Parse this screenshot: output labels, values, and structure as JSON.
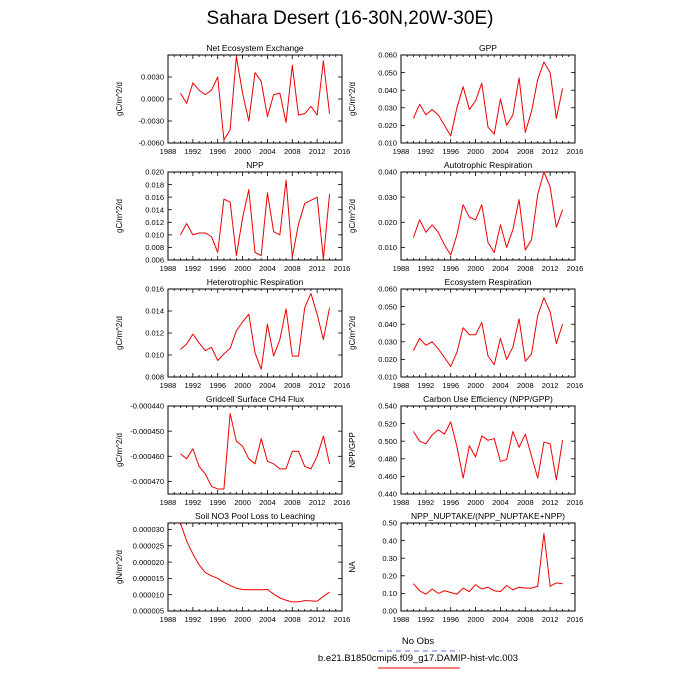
{
  "page": {
    "title": "Sahara Desert (16-30N,20W-30E)"
  },
  "colors": {
    "series": "#ee0000",
    "obs": "#5a6fd9",
    "axis": "#000000"
  },
  "legend": [
    {
      "label": "No Obs",
      "color": "#5a6fd9",
      "dash": true
    },
    {
      "label": "b.e21.B1850cmip6.f09_g17.DAMIP-hist-vlc.003",
      "color": "#ee0000",
      "dash": false
    }
  ],
  "chart_data": [
    {
      "type": "line",
      "title": "Net Ecosystem Exchange",
      "ylabel": "gC/m^2/d",
      "xlim": [
        1988,
        2016
      ],
      "xticks": [
        "1988",
        "1992",
        "1996",
        "2000",
        "2004",
        "2008",
        "2012",
        "2016"
      ],
      "ylim": [
        -0.006,
        0.006
      ],
      "yticks": [
        "-0.0060",
        "-0.0030",
        "0.0000",
        "0.0030"
      ],
      "ytick_values": [
        -0.006,
        -0.003,
        0.0,
        0.003
      ],
      "x": [
        1990,
        1991,
        1992,
        1993,
        1994,
        1995,
        1996,
        1997,
        1998,
        1999,
        2000,
        2001,
        2002,
        2003,
        2004,
        2005,
        2006,
        2007,
        2008,
        2009,
        2010,
        2011,
        2012,
        2013,
        2014
      ],
      "series": [
        {
          "values": [
            0.0008,
            -0.0006,
            0.0022,
            0.0012,
            0.0006,
            0.0012,
            0.003,
            -0.0056,
            -0.0042,
            0.0058,
            0.0008,
            -0.003,
            0.0036,
            0.0024,
            -0.0024,
            0.0006,
            0.0008,
            -0.0032,
            0.0046,
            -0.0022,
            -0.002,
            -0.001,
            -0.0022,
            0.0052,
            -0.002
          ]
        }
      ]
    },
    {
      "type": "line",
      "title": "GPP",
      "ylabel": "gC/m^2/d",
      "xlim": [
        1988,
        2016
      ],
      "xticks": [
        "1988",
        "1992",
        "1996",
        "2000",
        "2004",
        "2008",
        "2012",
        "2016"
      ],
      "ylim": [
        0.01,
        0.06
      ],
      "yticks": [
        "0.010",
        "0.020",
        "0.030",
        "0.040",
        "0.050",
        "0.060"
      ],
      "ytick_values": [
        0.01,
        0.02,
        0.03,
        0.04,
        0.05,
        0.06
      ],
      "x": [
        1990,
        1991,
        1992,
        1993,
        1994,
        1995,
        1996,
        1997,
        1998,
        1999,
        2000,
        2001,
        2002,
        2003,
        2004,
        2005,
        2006,
        2007,
        2008,
        2009,
        2010,
        2011,
        2012,
        2013,
        2014
      ],
      "series": [
        {
          "values": [
            0.024,
            0.032,
            0.026,
            0.029,
            0.026,
            0.02,
            0.014,
            0.03,
            0.042,
            0.029,
            0.034,
            0.044,
            0.019,
            0.015,
            0.035,
            0.02,
            0.026,
            0.047,
            0.016,
            0.028,
            0.046,
            0.056,
            0.05,
            0.024,
            0.041
          ]
        }
      ]
    },
    {
      "type": "line",
      "title": "NPP",
      "ylabel": "gC/m^2/d",
      "xlim": [
        1988,
        2016
      ],
      "xticks": [
        "1988",
        "1992",
        "1996",
        "2000",
        "2004",
        "2008",
        "2012",
        "2016"
      ],
      "ylim": [
        0.006,
        0.02
      ],
      "yticks": [
        "0.006",
        "0.008",
        "0.010",
        "0.012",
        "0.014",
        "0.016",
        "0.018",
        "0.020"
      ],
      "ytick_values": [
        0.006,
        0.008,
        0.01,
        0.012,
        0.014,
        0.016,
        0.018,
        0.02
      ],
      "x": [
        1990,
        1991,
        1992,
        1993,
        1994,
        1995,
        1996,
        1997,
        1998,
        1999,
        2000,
        2001,
        2002,
        2003,
        2004,
        2005,
        2006,
        2007,
        2008,
        2009,
        2010,
        2011,
        2012,
        2013,
        2014
      ],
      "series": [
        {
          "values": [
            0.01,
            0.0118,
            0.01,
            0.0103,
            0.0103,
            0.0097,
            0.0072,
            0.0157,
            0.0152,
            0.0067,
            0.0127,
            0.0172,
            0.0072,
            0.0067,
            0.0167,
            0.0105,
            0.01,
            0.0187,
            0.0065,
            0.0117,
            0.015,
            0.0155,
            0.016,
            0.0062,
            0.0165
          ]
        }
      ]
    },
    {
      "type": "line",
      "title": "Autotrophic Respiration",
      "ylabel": "gC/m^2/d",
      "xlim": [
        1988,
        2016
      ],
      "xticks": [
        "1988",
        "1992",
        "1996",
        "2000",
        "2004",
        "2008",
        "2012",
        "2016"
      ],
      "ylim": [
        0.005,
        0.04
      ],
      "yticks": [
        "0.010",
        "0.020",
        "0.030",
        "0.040"
      ],
      "ytick_values": [
        0.01,
        0.02,
        0.03,
        0.04
      ],
      "x": [
        1990,
        1991,
        1992,
        1993,
        1994,
        1995,
        1996,
        1997,
        1998,
        1999,
        2000,
        2001,
        2002,
        2003,
        2004,
        2005,
        2006,
        2007,
        2008,
        2009,
        2010,
        2011,
        2012,
        2013,
        2014
      ],
      "series": [
        {
          "values": [
            0.014,
            0.021,
            0.016,
            0.019,
            0.016,
            0.011,
            0.007,
            0.015,
            0.027,
            0.022,
            0.021,
            0.027,
            0.012,
            0.008,
            0.019,
            0.01,
            0.017,
            0.029,
            0.009,
            0.013,
            0.031,
            0.04,
            0.034,
            0.018,
            0.025
          ]
        }
      ]
    },
    {
      "type": "line",
      "title": "Heterotrophic Respiration",
      "ylabel": "gC/m^2/d",
      "xlim": [
        1988,
        2016
      ],
      "xticks": [
        "1988",
        "1992",
        "1996",
        "2000",
        "2004",
        "2008",
        "2012",
        "2016"
      ],
      "ylim": [
        0.008,
        0.016
      ],
      "yticks": [
        "0.008",
        "0.010",
        "0.012",
        "0.014",
        "0.016"
      ],
      "ytick_values": [
        0.008,
        0.01,
        0.012,
        0.014,
        0.016
      ],
      "x": [
        1990,
        1991,
        1992,
        1993,
        1994,
        1995,
        1996,
        1997,
        1998,
        1999,
        2000,
        2001,
        2002,
        2003,
        2004,
        2005,
        2006,
        2007,
        2008,
        2009,
        2010,
        2011,
        2012,
        2013,
        2014
      ],
      "series": [
        {
          "values": [
            0.0105,
            0.011,
            0.0119,
            0.0111,
            0.0104,
            0.0107,
            0.0095,
            0.0101,
            0.0106,
            0.0122,
            0.013,
            0.0137,
            0.0102,
            0.0087,
            0.0128,
            0.0099,
            0.0114,
            0.0142,
            0.0099,
            0.0099,
            0.0143,
            0.0156,
            0.0137,
            0.0114,
            0.0143
          ]
        }
      ]
    },
    {
      "type": "line",
      "title": "Ecosystem Respiration",
      "ylabel": "gC/m^2/d",
      "xlim": [
        1988,
        2016
      ],
      "xticks": [
        "1988",
        "1992",
        "1996",
        "2000",
        "2004",
        "2008",
        "2012",
        "2016"
      ],
      "ylim": [
        0.01,
        0.06
      ],
      "yticks": [
        "0.010",
        "0.020",
        "0.030",
        "0.040",
        "0.050",
        "0.060"
      ],
      "ytick_values": [
        0.01,
        0.02,
        0.03,
        0.04,
        0.05,
        0.06
      ],
      "x": [
        1990,
        1991,
        1992,
        1993,
        1994,
        1995,
        1996,
        1997,
        1998,
        1999,
        2000,
        2001,
        2002,
        2003,
        2004,
        2005,
        2006,
        2007,
        2008,
        2009,
        2010,
        2011,
        2012,
        2013,
        2014
      ],
      "series": [
        {
          "values": [
            0.025,
            0.032,
            0.028,
            0.03,
            0.026,
            0.021,
            0.016,
            0.024,
            0.038,
            0.034,
            0.034,
            0.041,
            0.022,
            0.017,
            0.032,
            0.02,
            0.027,
            0.043,
            0.019,
            0.023,
            0.045,
            0.055,
            0.047,
            0.029,
            0.04
          ]
        }
      ]
    },
    {
      "type": "line",
      "title": "Gridcell Surface CH4 Flux",
      "ylabel": "gC/m^2/d",
      "xlim": [
        1988,
        2016
      ],
      "xticks": [
        "1988",
        "1992",
        "1996",
        "2000",
        "2004",
        "2008",
        "2012",
        "2016"
      ],
      "ylim": [
        -0.000475,
        -0.00044
      ],
      "yticks": [
        "-0.000470",
        "-0.000460",
        "-0.000450",
        "-0.000440"
      ],
      "ytick_values": [
        -0.00047,
        -0.00046,
        -0.00045,
        -0.00044
      ],
      "x": [
        1990,
        1991,
        1992,
        1993,
        1994,
        1995,
        1996,
        1997,
        1998,
        1999,
        2000,
        2001,
        2002,
        2003,
        2004,
        2005,
        2006,
        2007,
        2008,
        2009,
        2010,
        2011,
        2012,
        2013,
        2014
      ],
      "series": [
        {
          "values": [
            -0.000459,
            -0.000461,
            -0.000457,
            -0.000464,
            -0.000467,
            -0.000472,
            -0.000473,
            -0.000473,
            -0.000443,
            -0.000454,
            -0.000456,
            -0.000461,
            -0.000463,
            -0.000453,
            -0.000462,
            -0.000463,
            -0.000465,
            -0.000465,
            -0.000458,
            -0.000458,
            -0.000464,
            -0.000465,
            -0.00046,
            -0.000452,
            -0.000463
          ]
        }
      ]
    },
    {
      "type": "line",
      "title": "Carbon Use Efficiency (NPP/GPP)",
      "ylabel": "NPP/GPP",
      "xlim": [
        1988,
        2016
      ],
      "xticks": [
        "1988",
        "1992",
        "1996",
        "2000",
        "2004",
        "2008",
        "2012",
        "2016"
      ],
      "ylim": [
        0.44,
        0.54
      ],
      "yticks": [
        "0.440",
        "0.460",
        "0.480",
        "0.500",
        "0.520",
        "0.540"
      ],
      "ytick_values": [
        0.44,
        0.46,
        0.48,
        0.5,
        0.52,
        0.54
      ],
      "x": [
        1990,
        1991,
        1992,
        1993,
        1994,
        1995,
        1996,
        1997,
        1998,
        1999,
        2000,
        2001,
        2002,
        2003,
        2004,
        2005,
        2006,
        2007,
        2008,
        2009,
        2010,
        2011,
        2012,
        2013,
        2014
      ],
      "series": [
        {
          "values": [
            0.511,
            0.5,
            0.497,
            0.507,
            0.513,
            0.508,
            0.522,
            0.494,
            0.458,
            0.495,
            0.482,
            0.506,
            0.501,
            0.503,
            0.477,
            0.479,
            0.511,
            0.493,
            0.508,
            0.483,
            0.458,
            0.499,
            0.497,
            0.456,
            0.501
          ]
        }
      ]
    },
    {
      "type": "line",
      "title": "Soil NO3 Pool Loss to Leaching",
      "ylabel": "gN/m^2/d",
      "xlim": [
        1988,
        2016
      ],
      "xticks": [
        "1988",
        "1992",
        "1996",
        "2000",
        "2004",
        "2008",
        "2012",
        "2016"
      ],
      "ylim": [
        5e-06,
        3.2e-05
      ],
      "yticks": [
        "0.000005",
        "0.000010",
        "0.000015",
        "0.000020",
        "0.000025",
        "0.000030"
      ],
      "ytick_values": [
        5e-06,
        1e-05,
        1.5e-05,
        2e-05,
        2.5e-05,
        3e-05
      ],
      "x": [
        1990,
        1991,
        1992,
        1993,
        1994,
        1995,
        1996,
        1997,
        1998,
        1999,
        2000,
        2001,
        2002,
        2003,
        2004,
        2005,
        2006,
        2007,
        2008,
        2009,
        2010,
        2011,
        2012,
        2013,
        2014
      ],
      "series": [
        {
          "values": [
            3.2e-05,
            2.65e-05,
            2.25e-05,
            1.92e-05,
            1.68e-05,
            1.58e-05,
            1.5e-05,
            1.38e-05,
            1.28e-05,
            1.2e-05,
            1.16e-05,
            1.15e-05,
            1.15e-05,
            1.15e-05,
            1.16e-05,
            1.02e-05,
            9e-06,
            8.3e-06,
            7.8e-06,
            7.8e-06,
            8.2e-06,
            8.1e-06,
            8e-06,
            9.5e-06,
            1.08e-05
          ]
        }
      ]
    },
    {
      "type": "line",
      "title": "NPP_NUPTAKE/(NPP_NUPTAKE+NPP)",
      "ylabel": "NA",
      "xlim": [
        1988,
        2016
      ],
      "xticks": [
        "1988",
        "1992",
        "1996",
        "2000",
        "2004",
        "2008",
        "2012",
        "2016"
      ],
      "ylim": [
        0.0,
        0.5
      ],
      "yticks": [
        "0.00",
        "0.10",
        "0.20",
        "0.30",
        "0.40",
        "0.50"
      ],
      "ytick_values": [
        0.0,
        0.1,
        0.2,
        0.3,
        0.4,
        0.5
      ],
      "x": [
        1990,
        1991,
        1992,
        1993,
        1994,
        1995,
        1996,
        1997,
        1998,
        1999,
        2000,
        2001,
        2002,
        2003,
        2004,
        2005,
        2006,
        2007,
        2008,
        2009,
        2010,
        2011,
        2012,
        2013,
        2014
      ],
      "series": [
        {
          "values": [
            0.155,
            0.115,
            0.095,
            0.125,
            0.1,
            0.115,
            0.105,
            0.095,
            0.13,
            0.11,
            0.15,
            0.125,
            0.135,
            0.115,
            0.11,
            0.145,
            0.12,
            0.135,
            0.13,
            0.13,
            0.14,
            0.44,
            0.14,
            0.16,
            0.155
          ]
        }
      ]
    }
  ]
}
